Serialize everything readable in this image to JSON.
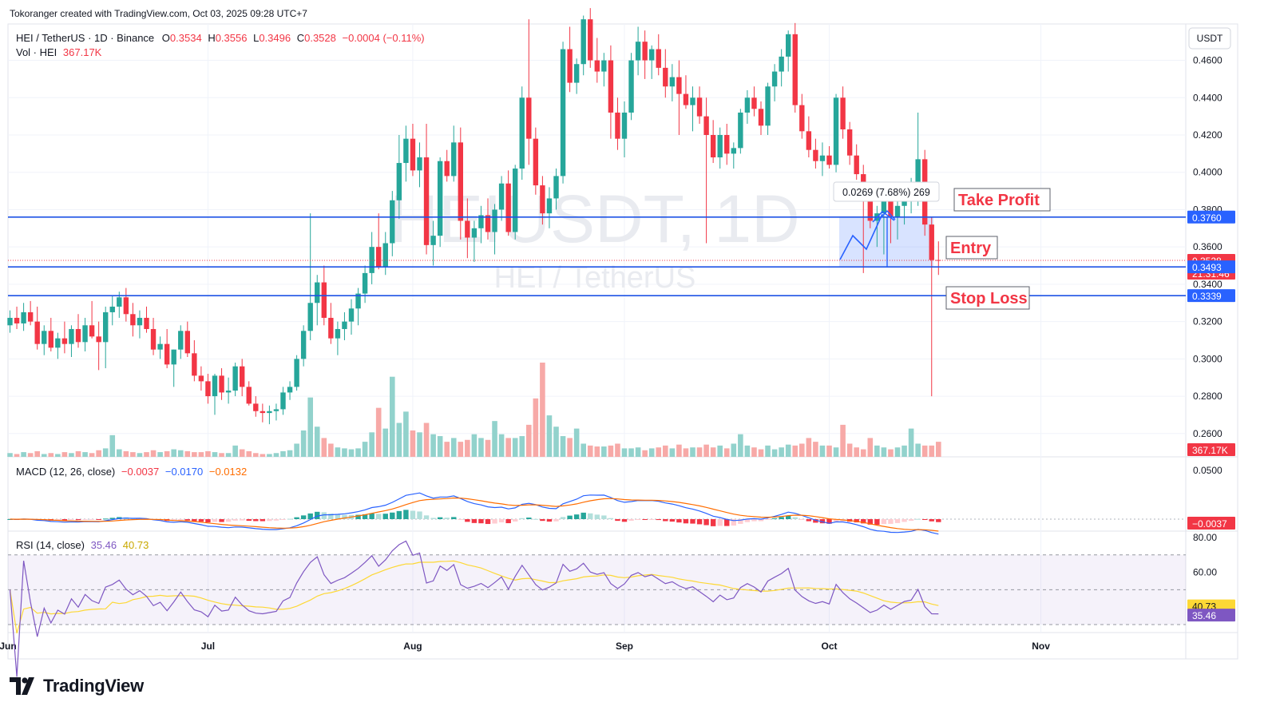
{
  "credit": "Tokoranger created with TradingView.com, Oct 03, 2025 09:28 UTC+7",
  "legend": {
    "symbol": "HEI / TetherUS · 1D · Binance",
    "o_label": "O",
    "o": "0.3534",
    "h_label": "H",
    "h": "0.3556",
    "l_label": "L",
    "l": "0.3496",
    "c_label": "C",
    "c": "0.3528",
    "change": "−0.0004 (−0.11%)",
    "vol_label": "Vol · HEI",
    "vol": "367.17K"
  },
  "watermark": {
    "ticker": "HEIUSDT, 1D",
    "name": "HEI / TetherUS"
  },
  "currency_button": "USDT",
  "brand": "TradingView",
  "colors": {
    "up": "#26a69a",
    "down": "#f23645",
    "up_vol": "#92d2cc",
    "down_vol": "#f7a9a7",
    "level_line": "#1e53e5",
    "macd": "#2962ff",
    "signal": "#ff6d00",
    "rsi": "#7e57c2",
    "rsi_ma": "#fdd835",
    "label_red": "#f23645",
    "label_blue": "#2962ff"
  },
  "chart_data": [
    {
      "type": "candlestick",
      "title": "HEI / TetherUS · 1D · Binance",
      "x_ticks": [
        "Jun",
        "Jul",
        "Aug",
        "Sep",
        "Oct",
        "Nov"
      ],
      "y_ticks": [
        "0.2600",
        "0.2800",
        "0.3000",
        "0.3200",
        "0.3400",
        "0.3600",
        "0.3800",
        "0.4000",
        "0.4200",
        "0.4400",
        "0.4600"
      ],
      "ylim": [
        0.2475,
        0.4795
      ],
      "ohlc_approx_daily_from_jun": [
        [
          0.318,
          0.326,
          0.314,
          0.322
        ],
        [
          0.322,
          0.328,
          0.316,
          0.319
        ],
        [
          0.319,
          0.33,
          0.315,
          0.325
        ],
        [
          0.325,
          0.331,
          0.318,
          0.32
        ],
        [
          0.32,
          0.328,
          0.305,
          0.308
        ],
        [
          0.308,
          0.318,
          0.302,
          0.315
        ],
        [
          0.315,
          0.322,
          0.304,
          0.306
        ],
        [
          0.306,
          0.314,
          0.3,
          0.311
        ],
        [
          0.311,
          0.32,
          0.303,
          0.308
        ],
        [
          0.308,
          0.318,
          0.301,
          0.316
        ],
        [
          0.316,
          0.324,
          0.306,
          0.309
        ],
        [
          0.309,
          0.322,
          0.304,
          0.318
        ],
        [
          0.318,
          0.331,
          0.311,
          0.312
        ],
        [
          0.312,
          0.32,
          0.294,
          0.309
        ],
        [
          0.309,
          0.328,
          0.295,
          0.325
        ],
        [
          0.325,
          0.334,
          0.318,
          0.328
        ],
        [
          0.328,
          0.336,
          0.322,
          0.333
        ],
        [
          0.333,
          0.338,
          0.32,
          0.324
        ],
        [
          0.324,
          0.33,
          0.312,
          0.318
        ],
        [
          0.318,
          0.326,
          0.311,
          0.322
        ],
        [
          0.322,
          0.328,
          0.314,
          0.316
        ],
        [
          0.316,
          0.322,
          0.302,
          0.305
        ],
        [
          0.305,
          0.312,
          0.3,
          0.308
        ],
        [
          0.308,
          0.316,
          0.295,
          0.297
        ],
        [
          0.297,
          0.305,
          0.285,
          0.305
        ],
        [
          0.305,
          0.318,
          0.3,
          0.315
        ],
        [
          0.315,
          0.32,
          0.301,
          0.303
        ],
        [
          0.303,
          0.31,
          0.288,
          0.291
        ],
        [
          0.291,
          0.296,
          0.283,
          0.288
        ],
        [
          0.288,
          0.292,
          0.276,
          0.28
        ],
        [
          0.28,
          0.292,
          0.27,
          0.291
        ],
        [
          0.291,
          0.295,
          0.278,
          0.282
        ],
        [
          0.282,
          0.29,
          0.276,
          0.283
        ],
        [
          0.283,
          0.298,
          0.28,
          0.296
        ],
        [
          0.296,
          0.3,
          0.28,
          0.285
        ],
        [
          0.285,
          0.288,
          0.275,
          0.276
        ],
        [
          0.276,
          0.28,
          0.269,
          0.272
        ],
        [
          0.272,
          0.276,
          0.266,
          0.271
        ],
        [
          0.271,
          0.275,
          0.265,
          0.272
        ],
        [
          0.272,
          0.276,
          0.267,
          0.273
        ],
        [
          0.273,
          0.285,
          0.27,
          0.282
        ],
        [
          0.282,
          0.288,
          0.278,
          0.285
        ],
        [
          0.285,
          0.302,
          0.283,
          0.3
        ],
        [
          0.3,
          0.318,
          0.296,
          0.315
        ],
        [
          0.315,
          0.378,
          0.31,
          0.33
        ],
        [
          0.33,
          0.345,
          0.318,
          0.341
        ],
        [
          0.341,
          0.35,
          0.318,
          0.322
        ],
        [
          0.322,
          0.33,
          0.308,
          0.311
        ],
        [
          0.311,
          0.32,
          0.302,
          0.316
        ],
        [
          0.316,
          0.325,
          0.31,
          0.32
        ],
        [
          0.32,
          0.332,
          0.313,
          0.327
        ],
        [
          0.327,
          0.338,
          0.318,
          0.335
        ],
        [
          0.335,
          0.35,
          0.33,
          0.346
        ],
        [
          0.346,
          0.368,
          0.34,
          0.36
        ],
        [
          0.36,
          0.378,
          0.348,
          0.349
        ],
        [
          0.349,
          0.368,
          0.345,
          0.362
        ],
        [
          0.362,
          0.39,
          0.355,
          0.385
        ],
        [
          0.385,
          0.42,
          0.375,
          0.405
        ],
        [
          0.405,
          0.425,
          0.395,
          0.418
        ],
        [
          0.418,
          0.426,
          0.398,
          0.401
        ],
        [
          0.401,
          0.416,
          0.392,
          0.408
        ],
        [
          0.408,
          0.426,
          0.356,
          0.361
        ],
        [
          0.361,
          0.374,
          0.35,
          0.366
        ],
        [
          0.366,
          0.408,
          0.36,
          0.406
        ],
        [
          0.406,
          0.412,
          0.395,
          0.398
        ],
        [
          0.398,
          0.425,
          0.395,
          0.416
        ],
        [
          0.416,
          0.424,
          0.364,
          0.374
        ],
        [
          0.374,
          0.386,
          0.354,
          0.365
        ],
        [
          0.365,
          0.374,
          0.352,
          0.37
        ],
        [
          0.37,
          0.382,
          0.362,
          0.377
        ],
        [
          0.377,
          0.386,
          0.364,
          0.368
        ],
        [
          0.368,
          0.383,
          0.356,
          0.38
        ],
        [
          0.38,
          0.398,
          0.374,
          0.394
        ],
        [
          0.394,
          0.401,
          0.366,
          0.368
        ],
        [
          0.368,
          0.404,
          0.364,
          0.402
        ],
        [
          0.402,
          0.446,
          0.396,
          0.44
        ],
        [
          0.44,
          0.482,
          0.404,
          0.418
        ],
        [
          0.418,
          0.424,
          0.388,
          0.393
        ],
        [
          0.393,
          0.398,
          0.372,
          0.378
        ],
        [
          0.378,
          0.392,
          0.37,
          0.386
        ],
        [
          0.386,
          0.402,
          0.38,
          0.398
        ],
        [
          0.398,
          0.47,
          0.394,
          0.466
        ],
        [
          0.466,
          0.478,
          0.443,
          0.448
        ],
        [
          0.448,
          0.461,
          0.442,
          0.458
        ],
        [
          0.458,
          0.484,
          0.452,
          0.482
        ],
        [
          0.482,
          0.488,
          0.456,
          0.46
        ],
        [
          0.46,
          0.472,
          0.448,
          0.454
        ],
        [
          0.454,
          0.464,
          0.446,
          0.46
        ],
        [
          0.46,
          0.468,
          0.418,
          0.432
        ],
        [
          0.432,
          0.44,
          0.412,
          0.418
        ],
        [
          0.418,
          0.438,
          0.408,
          0.432
        ],
        [
          0.432,
          0.464,
          0.428,
          0.46
        ],
        [
          0.46,
          0.478,
          0.452,
          0.47
        ],
        [
          0.47,
          0.476,
          0.45,
          0.46
        ],
        [
          0.46,
          0.468,
          0.45,
          0.466
        ],
        [
          0.466,
          0.474,
          0.452,
          0.456
        ],
        [
          0.456,
          0.466,
          0.44,
          0.446
        ],
        [
          0.446,
          0.458,
          0.438,
          0.451
        ],
        [
          0.451,
          0.46,
          0.42,
          0.442
        ],
        [
          0.442,
          0.452,
          0.434,
          0.436
        ],
        [
          0.436,
          0.446,
          0.422,
          0.44
        ],
        [
          0.44,
          0.446,
          0.426,
          0.43
        ],
        [
          0.43,
          0.44,
          0.362,
          0.42
        ],
        [
          0.42,
          0.428,
          0.405,
          0.408
        ],
        [
          0.408,
          0.424,
          0.402,
          0.42
        ],
        [
          0.42,
          0.426,
          0.404,
          0.41
        ],
        [
          0.41,
          0.416,
          0.402,
          0.413
        ],
        [
          0.413,
          0.434,
          0.41,
          0.432
        ],
        [
          0.432,
          0.444,
          0.426,
          0.44
        ],
        [
          0.44,
          0.446,
          0.43,
          0.434
        ],
        [
          0.434,
          0.438,
          0.42,
          0.425
        ],
        [
          0.425,
          0.448,
          0.42,
          0.446
        ],
        [
          0.446,
          0.458,
          0.438,
          0.454
        ],
        [
          0.454,
          0.466,
          0.446,
          0.462
        ],
        [
          0.462,
          0.476,
          0.454,
          0.474
        ],
        [
          0.474,
          0.48,
          0.432,
          0.436
        ],
        [
          0.436,
          0.442,
          0.418,
          0.422
        ],
        [
          0.422,
          0.43,
          0.408,
          0.412
        ],
        [
          0.412,
          0.418,
          0.402,
          0.406
        ],
        [
          0.406,
          0.416,
          0.398,
          0.409
        ],
        [
          0.409,
          0.414,
          0.402,
          0.404
        ],
        [
          0.404,
          0.442,
          0.4,
          0.44
        ],
        [
          0.44,
          0.446,
          0.418,
          0.423
        ],
        [
          0.423,
          0.427,
          0.404,
          0.409
        ],
        [
          0.409,
          0.415,
          0.396,
          0.399
        ],
        [
          0.399,
          0.404,
          0.346,
          0.387
        ],
        [
          0.387,
          0.394,
          0.37,
          0.374
        ],
        [
          0.374,
          0.382,
          0.36,
          0.378
        ],
        [
          0.378,
          0.392,
          0.356,
          0.386
        ],
        [
          0.386,
          0.394,
          0.362,
          0.376
        ],
        [
          0.376,
          0.386,
          0.364,
          0.382
        ],
        [
          0.382,
          0.392,
          0.372,
          0.388
        ],
        [
          0.388,
          0.397,
          0.378,
          0.39
        ],
        [
          0.39,
          0.432,
          0.382,
          0.407
        ],
        [
          0.407,
          0.412,
          0.366,
          0.372
        ],
        [
          0.372,
          0.376,
          0.28,
          0.353
        ],
        [
          0.353,
          0.363,
          0.345,
          0.3528
        ]
      ],
      "last_close": "0.3528",
      "countdown": "21:31:46",
      "levels": {
        "take_profit": "0.3760",
        "entry": "0.3493",
        "stop_loss": "0.3339"
      },
      "level_labels": {
        "take_profit": "Take Profit",
        "entry": "Entry",
        "stop_loss": "Stop Loss"
      },
      "measure_label": "0.0269 (7.68%) 269"
    },
    {
      "type": "bar",
      "title": "Vol · HEI",
      "last_value": "367.17K",
      "volume_relative_0_to_1": [
        0.04,
        0.03,
        0.05,
        0.04,
        0.06,
        0.03,
        0.04,
        0.03,
        0.05,
        0.04,
        0.06,
        0.05,
        0.04,
        0.07,
        0.09,
        0.23,
        0.08,
        0.06,
        0.05,
        0.04,
        0.05,
        0.07,
        0.05,
        0.06,
        0.08,
        0.07,
        0.06,
        0.05,
        0.05,
        0.06,
        0.05,
        0.04,
        0.04,
        0.12,
        0.08,
        0.06,
        0.04,
        0.03,
        0.03,
        0.04,
        0.06,
        0.07,
        0.14,
        0.28,
        0.63,
        0.32,
        0.2,
        0.14,
        0.1,
        0.09,
        0.08,
        0.09,
        0.16,
        0.26,
        0.52,
        0.3,
        0.85,
        0.36,
        0.48,
        0.28,
        0.26,
        0.36,
        0.24,
        0.22,
        0.16,
        0.2,
        0.16,
        0.18,
        0.24,
        0.2,
        0.18,
        0.38,
        0.24,
        0.2,
        0.2,
        0.22,
        0.34,
        0.62,
        1.0,
        0.44,
        0.32,
        0.22,
        0.2,
        0.3,
        0.14,
        0.12,
        0.11,
        0.11,
        0.12,
        0.14,
        0.09,
        0.09,
        0.1,
        0.07,
        0.09,
        0.1,
        0.12,
        0.09,
        0.13,
        0.09,
        0.1,
        0.1,
        0.13,
        0.1,
        0.12,
        0.09,
        0.14,
        0.24,
        0.12,
        0.1,
        0.08,
        0.12,
        0.08,
        0.1,
        0.13,
        0.12,
        0.14,
        0.2,
        0.16,
        0.12,
        0.12,
        0.1,
        0.34,
        0.14,
        0.1,
        0.08,
        0.2,
        0.12,
        0.1,
        0.08,
        0.1,
        0.12,
        0.3,
        0.14,
        0.12,
        0.12,
        0.16,
        0.2,
        0.62,
        0.2,
        0.03
      ]
    },
    {
      "type": "line",
      "title": "MACD (12, 26, close)",
      "values_text": [
        "−0.0037",
        "−0.0170",
        "−0.0132"
      ],
      "y_ticks": [
        "0.0500"
      ],
      "last_value": "−0.0037",
      "series_names": [
        "Histogram",
        "MACD",
        "Signal"
      ]
    },
    {
      "type": "line",
      "title": "RSI (14, close)",
      "values_text": [
        "35.46",
        "40.73"
      ],
      "y_ticks": [
        "80.00",
        "60.00"
      ],
      "last_rsi": "35.46",
      "last_rsi_ma": "40.73"
    }
  ]
}
